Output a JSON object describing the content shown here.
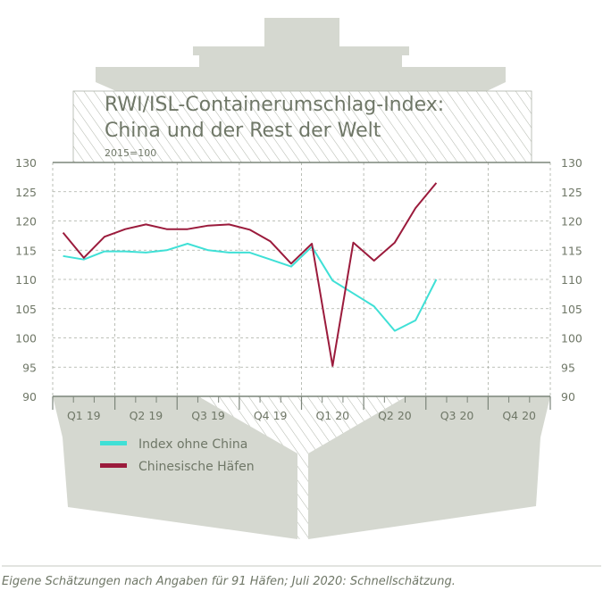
{
  "chart_data": {
    "type": "line",
    "title": "RWI/ISL-Containerumschlag-Index:",
    "title_line2": "China und der Rest der Welt",
    "subtitle": "2015=100",
    "x": [
      "2019-01",
      "2019-02",
      "2019-03",
      "2019-04",
      "2019-05",
      "2019-06",
      "2019-07",
      "2019-08",
      "2019-09",
      "2019-10",
      "2019-11",
      "2019-12",
      "2020-01",
      "2020-02",
      "2020-03",
      "2020-04",
      "2020-05",
      "2020-06",
      "2020-07"
    ],
    "x_tick_labels": [
      "Q1 19",
      "Q2 19",
      "Q3 19",
      "Q4 19",
      "Q1 20",
      "Q2 20",
      "Q3 20",
      "Q4 20"
    ],
    "y_ticks": [
      90,
      95,
      100,
      105,
      110,
      115,
      120,
      125,
      130
    ],
    "ylim": [
      90,
      130
    ],
    "xlim": [
      "2019-01",
      "2020-12"
    ],
    "grid": true,
    "legend_placement": "bottom-left",
    "series": [
      {
        "name": "Index ohne China",
        "color": "#3fe0d6",
        "values": [
          114.0,
          113.4,
          114.8,
          114.8,
          114.6,
          115.0,
          116.1,
          115.0,
          114.6,
          114.6,
          113.4,
          112.2,
          115.6,
          109.8,
          107.6,
          105.4,
          101.2,
          103.0,
          110.0
        ]
      },
      {
        "name": "Chinesische Häfen",
        "color": "#9b1b3c",
        "values": [
          118.0,
          113.7,
          117.3,
          118.6,
          119.4,
          118.6,
          118.6,
          119.2,
          119.4,
          118.5,
          116.5,
          112.7,
          116.1,
          95.2,
          116.3,
          113.2,
          116.3,
          122.2,
          126.5
        ]
      }
    ]
  },
  "footer": "Eigene Schätzungen nach Angaben für 91 Häfen; Juli 2020: Schnellschätzung.",
  "colors": {
    "ship": "#d5d8d0",
    "text": "#6f7767",
    "axis": "#7c857a"
  }
}
